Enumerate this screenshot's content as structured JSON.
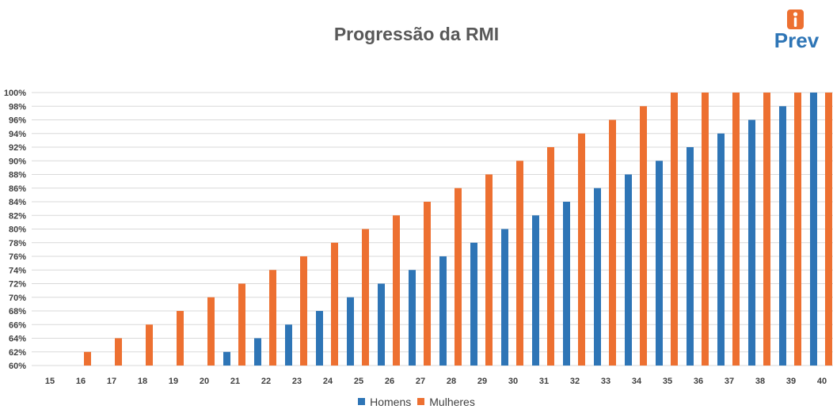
{
  "chart_data": {
    "type": "bar",
    "title": "Progressão da RMI",
    "xlabel": "",
    "ylabel": "",
    "categories": [
      "15",
      "16",
      "17",
      "18",
      "19",
      "20",
      "21",
      "22",
      "23",
      "24",
      "25",
      "26",
      "27",
      "28",
      "29",
      "30",
      "31",
      "32",
      "33",
      "34",
      "35",
      "36",
      "37",
      "38",
      "39",
      "40"
    ],
    "series": [
      {
        "name": "Homens",
        "color": "#2e75b6",
        "values": [
          null,
          null,
          null,
          null,
          null,
          null,
          62,
          64,
          66,
          68,
          70,
          72,
          74,
          76,
          78,
          80,
          82,
          84,
          86,
          88,
          90,
          92,
          94,
          96,
          98,
          100
        ]
      },
      {
        "name": "Mulheres",
        "color": "#ed7031",
        "values": [
          null,
          62,
          64,
          66,
          68,
          70,
          72,
          74,
          76,
          78,
          80,
          82,
          84,
          86,
          88,
          90,
          92,
          94,
          96,
          98,
          100,
          100,
          100,
          100,
          100,
          100
        ]
      }
    ],
    "ylim": [
      60,
      100
    ],
    "y_ticks": [
      "60%",
      "62%",
      "64%",
      "66%",
      "68%",
      "70%",
      "72%",
      "74%",
      "76%",
      "78%",
      "80%",
      "82%",
      "84%",
      "86%",
      "88%",
      "90%",
      "92%",
      "94%",
      "96%",
      "98%",
      "100%"
    ],
    "grid": true,
    "legend_position": "bottom"
  },
  "logo": {
    "text": "Prev",
    "icon": "person-tie-icon",
    "accent": "#ed7031",
    "brand": "#2e75b6"
  }
}
